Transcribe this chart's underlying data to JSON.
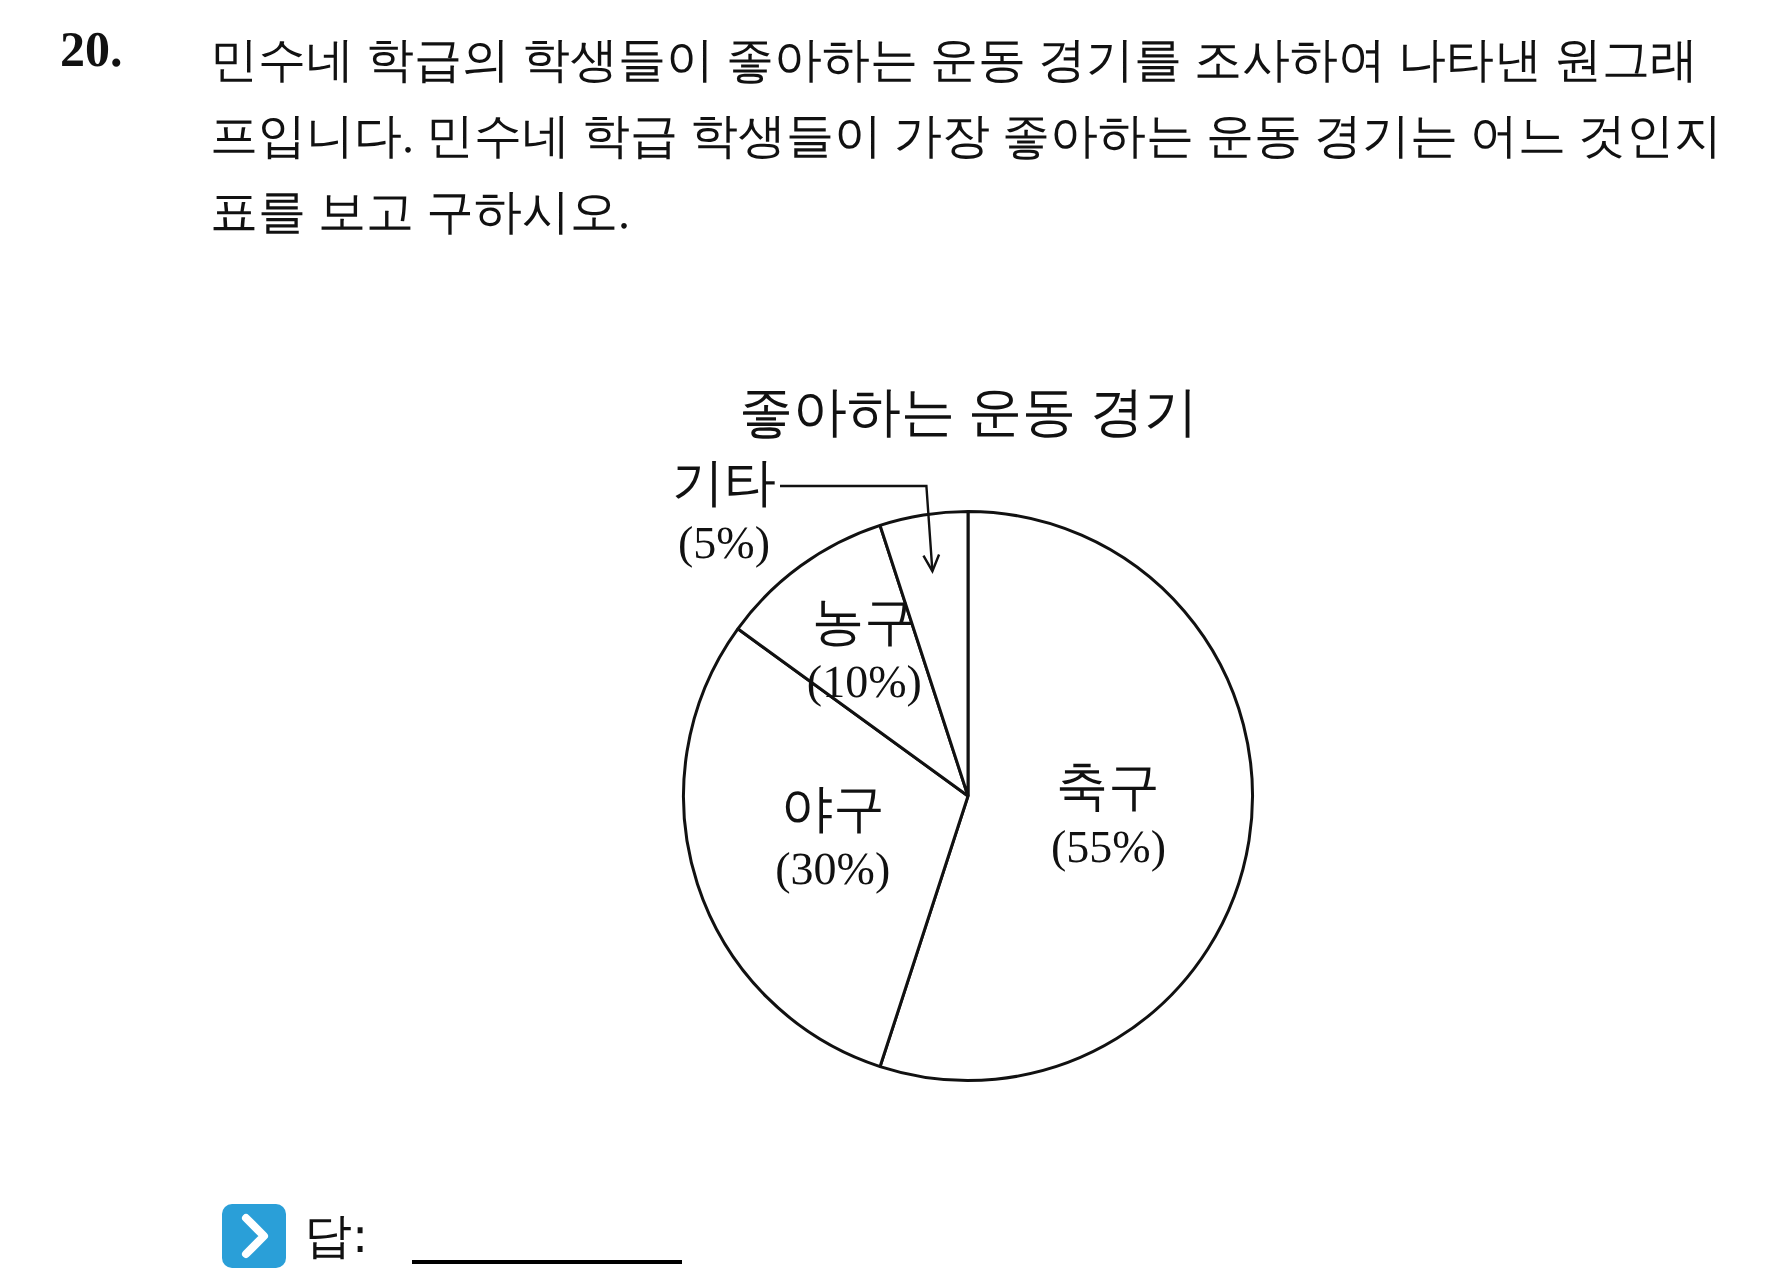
{
  "chart_data": {
    "type": "pie",
    "title": "좋아하는 운동 경기",
    "categories": [
      "축구",
      "야구",
      "농구",
      "기타"
    ],
    "values": [
      55,
      30,
      10,
      5
    ],
    "colors": [
      "#ffffff",
      "#ffffff",
      "#ffffff",
      "#ffffff"
    ],
    "value_labels": [
      "(55%)",
      "(30%)",
      "(10%)",
      "(5%)"
    ],
    "legend": false,
    "annotations": [
      "20.",
      "민수네 학급의 학생들이 좋아하는 운동 경기를 조사하여 나타낸 원그래프입니다. 민수네 학급 학생들이 가장 좋아하는 운동 경기는 어느 것인지 표를 보고 구하시오.",
      "답:"
    ]
  }
}
